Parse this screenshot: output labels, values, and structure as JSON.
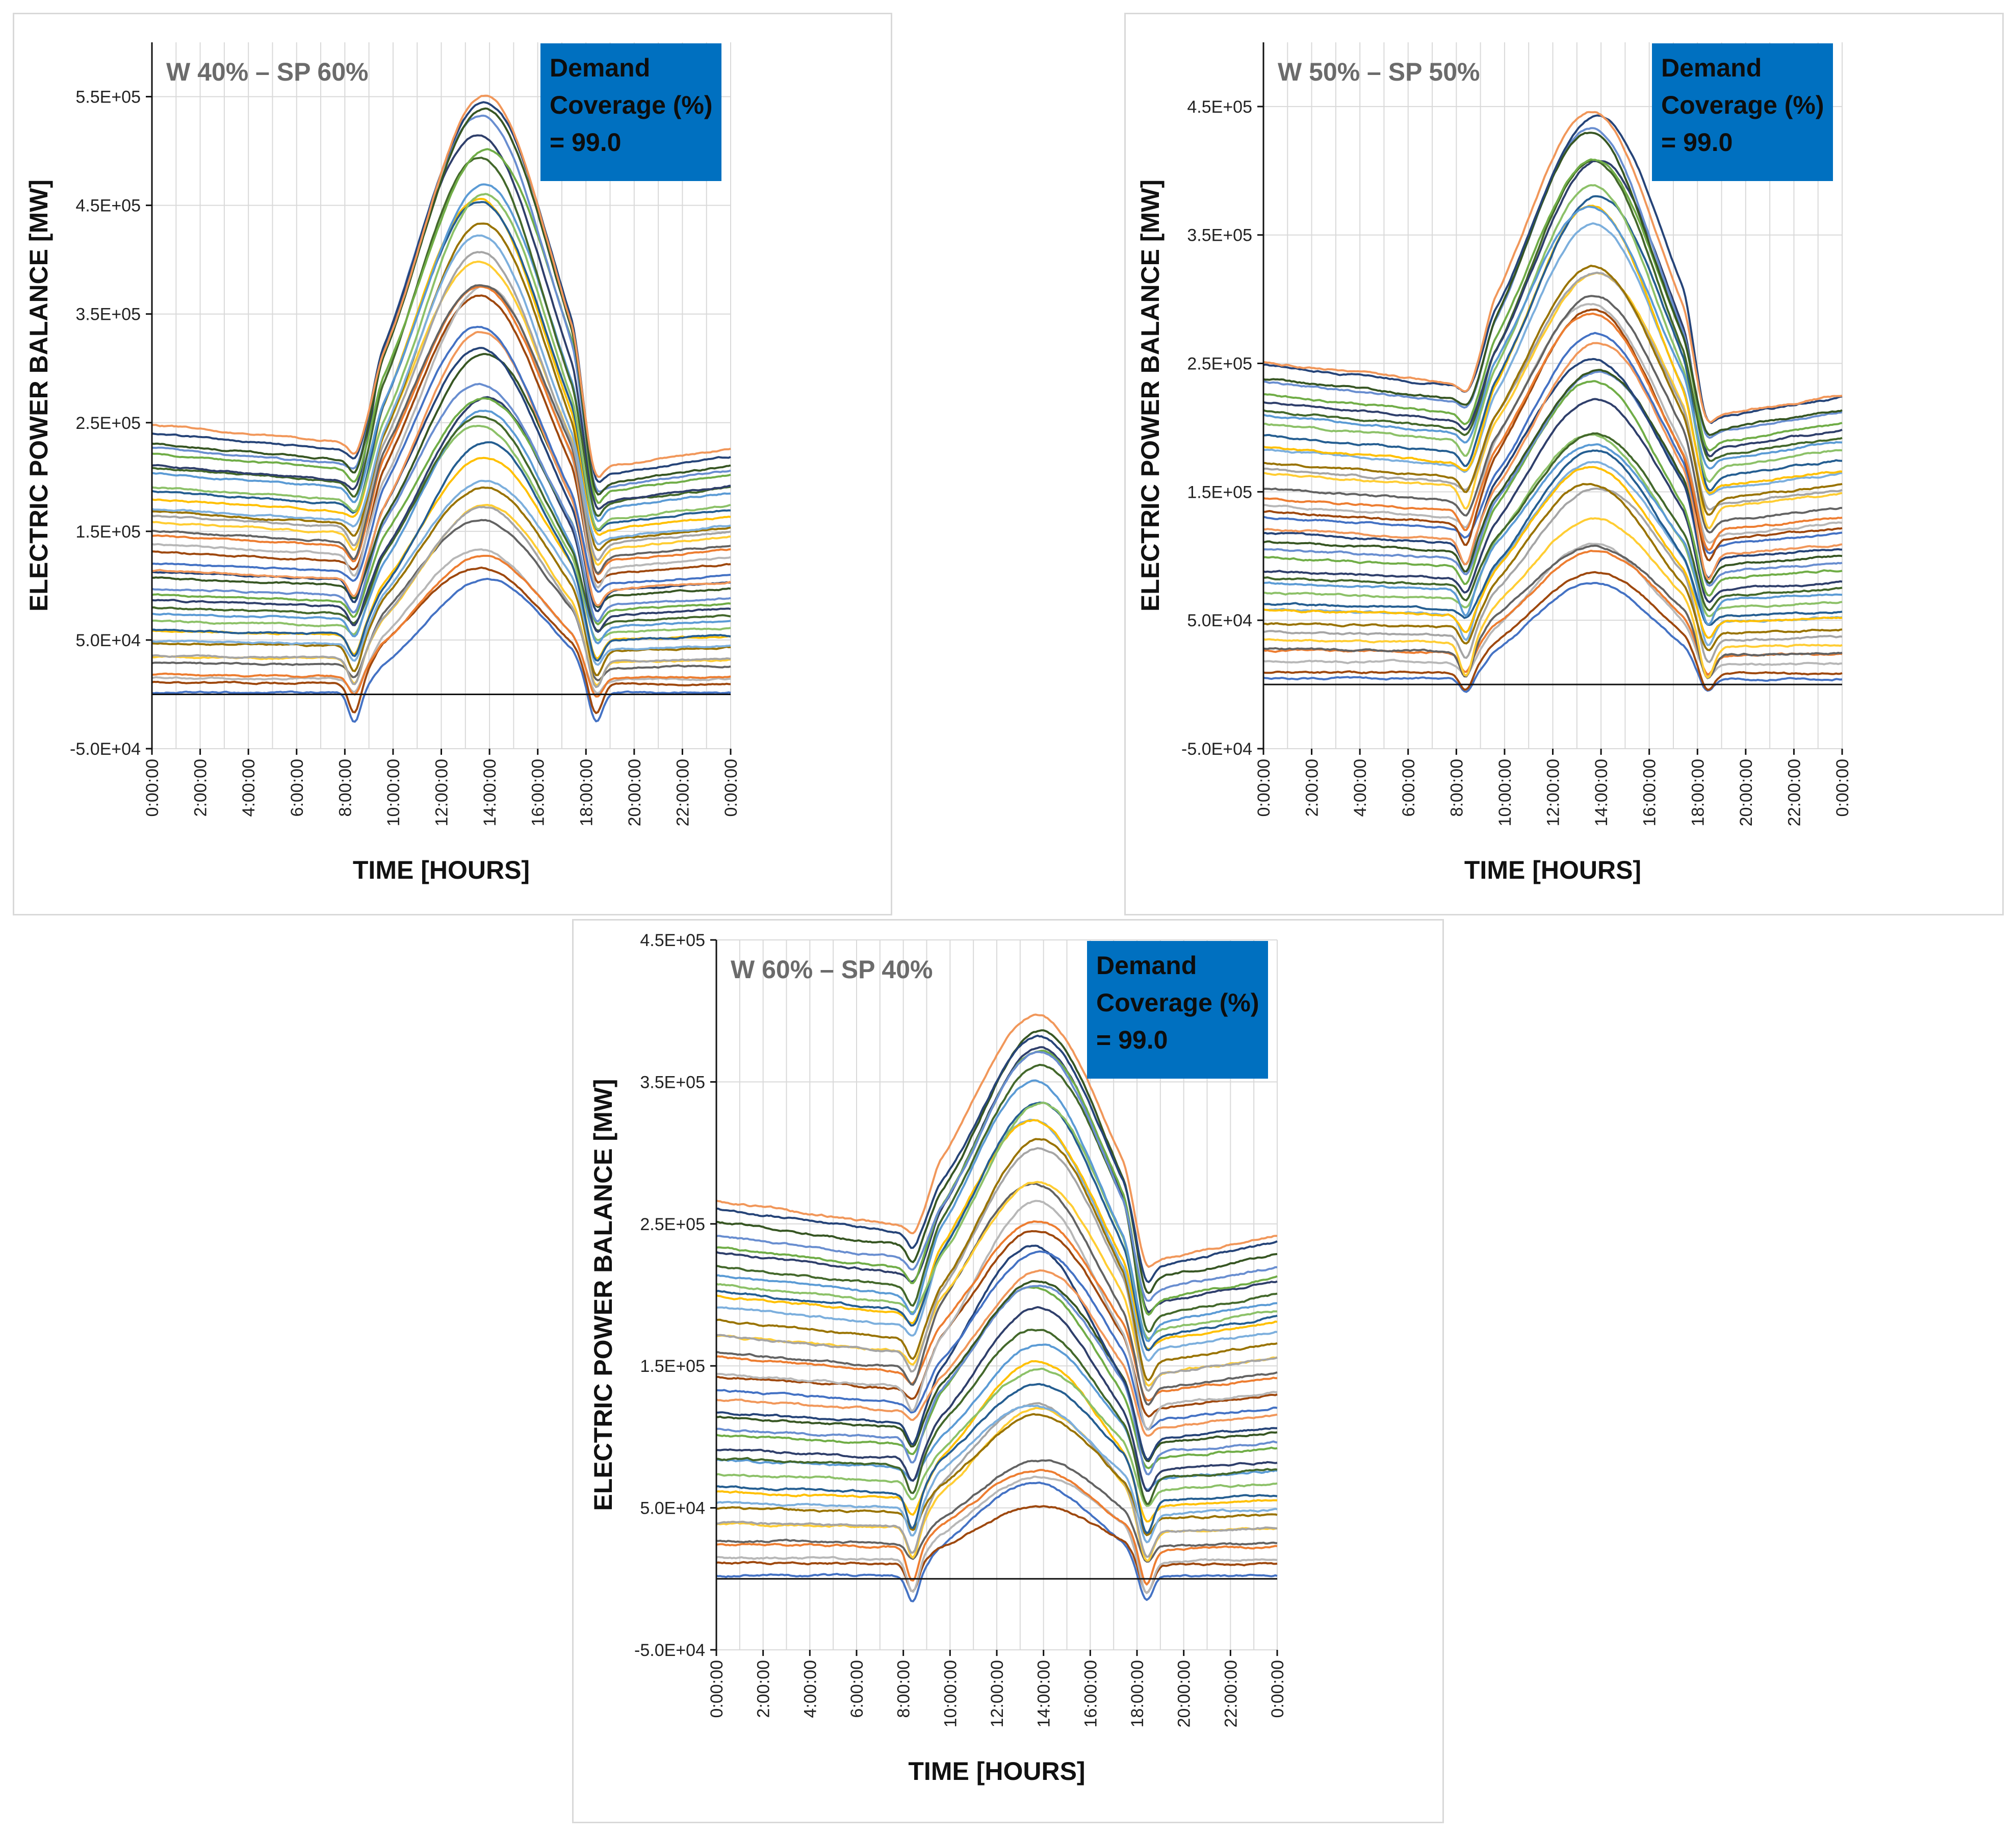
{
  "chart_data": [
    {
      "type": "line",
      "scenario_label": "W 40% – SP 60%",
      "coverage": [
        "Demand",
        "Coverage (%)",
        "= 99.0"
      ],
      "xlabel": "TIME [HOURS]",
      "ylabel": "ELECTRIC POWER BALANCE [MW]",
      "yticks": [
        550000,
        450000,
        350000,
        250000,
        150000,
        50000,
        -50000
      ],
      "ytick_labels": [
        "5.5E+05",
        "4.5E+05",
        "3.5E+05",
        "2.5E+05",
        "1.5E+05",
        "5.0E+04",
        "-5.0E+04"
      ],
      "ylim": [
        -50000,
        600000
      ],
      "xtick_labels": [
        "0:00:00",
        "2:00:00",
        "4:00:00",
        "6:00:00",
        "8:00:00",
        "10:00:00",
        "12:00:00",
        "14:00:00",
        "16:00:00",
        "18:00:00",
        "20:00:00",
        "22:00:00",
        "0:00:00"
      ],
      "xlim_hours": [
        0,
        24
      ],
      "series_count": 40,
      "base_range": [
        5000,
        245000
      ],
      "peak_range": [
        100000,
        557000
      ],
      "night_ratio": 0.91
    },
    {
      "type": "line",
      "scenario_label": "W 50% – SP 50%",
      "coverage": [
        "Demand",
        "Coverage (%)",
        "= 99.0"
      ],
      "xlabel": "TIME [HOURS]",
      "ylabel": "ELECTRIC POWER BALANCE [MW]",
      "yticks": [
        450000,
        350000,
        250000,
        150000,
        50000,
        -50000
      ],
      "ytick_labels": [
        "4.5E+05",
        "3.5E+05",
        "2.5E+05",
        "1.5E+05",
        "5.0E+04",
        "-5.0E+04"
      ],
      "ylim": [
        -50000,
        500000
      ],
      "xtick_labels": [
        "0:00:00",
        "2:00:00",
        "4:00:00",
        "6:00:00",
        "8:00:00",
        "10:00:00",
        "12:00:00",
        "14:00:00",
        "16:00:00",
        "18:00:00",
        "20:00:00",
        "22:00:00",
        "0:00:00"
      ],
      "xlim_hours": [
        0,
        24
      ],
      "series_count": 40,
      "base_range": [
        8000,
        252000
      ],
      "peak_range": [
        75000,
        450000
      ],
      "night_ratio": 0.9
    },
    {
      "type": "line",
      "scenario_label": "W 60% – SP 40%",
      "coverage": [
        "Demand",
        "Coverage (%)",
        "= 99.0"
      ],
      "xlabel": "TIME [HOURS]",
      "ylabel": "ELECTRIC POWER BALANCE [MW]",
      "yticks": [
        450000,
        350000,
        250000,
        150000,
        50000,
        -50000
      ],
      "ytick_labels": [
        "4.5E+05",
        "3.5E+05",
        "2.5E+05",
        "1.5E+05",
        "5.0E+04",
        "-5.0E+04"
      ],
      "ylim": [
        -50000,
        450000
      ],
      "xtick_labels": [
        "0:00:00",
        "2:00:00",
        "4:00:00",
        "6:00:00",
        "8:00:00",
        "10:00:00",
        "12:00:00",
        "14:00:00",
        "16:00:00",
        "18:00:00",
        "20:00:00",
        "22:00:00",
        "0:00:00"
      ],
      "xlim_hours": [
        0,
        24
      ],
      "series_count": 40,
      "base_range": [
        5000,
        265000
      ],
      "peak_range": [
        55000,
        405000
      ],
      "night_ratio": 0.91
    }
  ],
  "colors": {
    "palette": [
      "#4472c4",
      "#ed7d31",
      "#a5a5a5",
      "#ffc000",
      "#5b9bd5",
      "#70ad47",
      "#264478",
      "#9e480e",
      "#636363",
      "#997300",
      "#255e91",
      "#43682b",
      "#698ed0",
      "#f1975a",
      "#b7b7b7",
      "#ffcd33",
      "#7cafdd",
      "#8cc168",
      "#2f3f6b",
      "#375623"
    ],
    "coverage_box": "#0070c0"
  }
}
